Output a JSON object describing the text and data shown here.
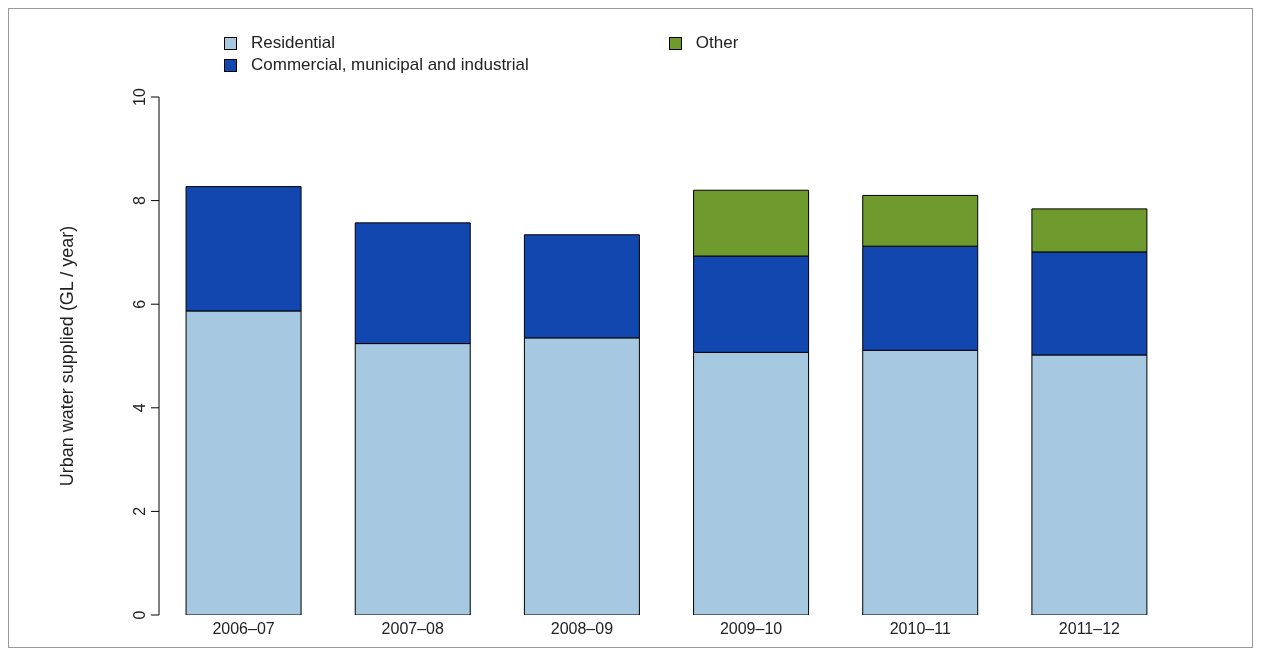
{
  "chart_data": {
    "type": "bar",
    "stacked": true,
    "ylabel": "Urban water supplied (GL / year)",
    "categories": [
      "2006–07",
      "2007–08",
      "2008–09",
      "2009–10",
      "2010–11",
      "2011–12"
    ],
    "series": [
      {
        "name": "Residential",
        "color": "#a6c8e0",
        "values": [
          5.87,
          5.24,
          5.35,
          5.07,
          5.11,
          5.02
        ]
      },
      {
        "name": "Commercial, municipal and industrial",
        "color": "#1347b0",
        "values": [
          2.4,
          2.33,
          1.99,
          1.86,
          2.01,
          1.99
        ]
      },
      {
        "name": "Other",
        "color": "#6e9a2e",
        "values": [
          null,
          null,
          null,
          1.27,
          0.98,
          0.83
        ]
      }
    ],
    "ylim": [
      0,
      10
    ],
    "yticks": [
      0,
      2,
      4,
      6,
      8,
      10
    ],
    "legend": "top left"
  }
}
